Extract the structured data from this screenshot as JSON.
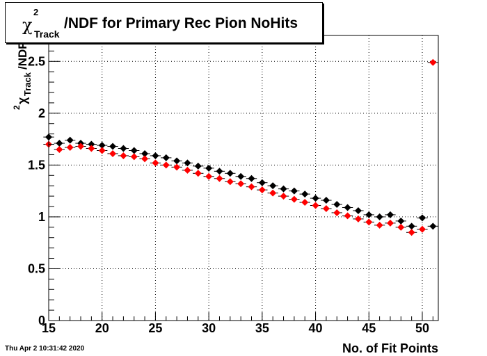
{
  "header": {
    "title_symbol": "χ",
    "title_sup": "2",
    "title_sub": "Track",
    "title_rest": "/NDF for Primary Rec Pion NoHits"
  },
  "footer": {
    "timestamp": "Thu Apr  2 10:31:42 2020"
  },
  "chart_data": {
    "type": "scatter",
    "title": "χ²Track/NDF for Primary Rec Pion NoHits",
    "xlabel": "No. of Fit Points",
    "ylabel": "χ²Track/NDF",
    "xlim": [
      15,
      51.5
    ],
    "ylim": [
      0,
      2.75
    ],
    "x_ticks": [
      15,
      20,
      25,
      30,
      35,
      40,
      45,
      50
    ],
    "y_ticks": [
      0,
      0.5,
      1,
      1.5,
      2,
      2.5
    ],
    "y_tick_labels": [
      "0",
      "0.5",
      "1",
      "1.5",
      "2",
      "2.5"
    ],
    "grid": true,
    "series": [
      {
        "color": "#000000",
        "x": [
          15,
          16,
          17,
          18,
          19,
          20,
          21,
          22,
          23,
          24,
          25,
          26,
          27,
          28,
          29,
          30,
          31,
          32,
          33,
          34,
          35,
          36,
          37,
          38,
          39,
          40,
          41,
          42,
          43,
          44,
          45,
          46,
          47,
          48,
          49,
          50,
          51
        ],
        "y": [
          1.77,
          1.71,
          1.74,
          1.71,
          1.7,
          1.69,
          1.68,
          1.66,
          1.64,
          1.61,
          1.59,
          1.57,
          1.54,
          1.52,
          1.49,
          1.47,
          1.44,
          1.42,
          1.39,
          1.37,
          1.33,
          1.3,
          1.27,
          1.25,
          1.22,
          1.18,
          1.16,
          1.12,
          1.09,
          1.06,
          1.02,
          1.0,
          1.02,
          0.96,
          0.91,
          0.99,
          0.91
        ]
      },
      {
        "color": "#ff0000",
        "x": [
          15,
          16,
          17,
          18,
          19,
          20,
          21,
          22,
          23,
          24,
          25,
          26,
          27,
          28,
          29,
          30,
          31,
          32,
          33,
          34,
          35,
          36,
          37,
          38,
          39,
          40,
          41,
          42,
          43,
          44,
          45,
          46,
          47,
          48,
          49,
          50,
          51
        ],
        "y": [
          1.7,
          1.65,
          1.67,
          1.68,
          1.66,
          1.64,
          1.61,
          1.59,
          1.58,
          1.56,
          1.52,
          1.5,
          1.48,
          1.45,
          1.42,
          1.39,
          1.37,
          1.34,
          1.32,
          1.29,
          1.26,
          1.23,
          1.2,
          1.17,
          1.14,
          1.11,
          1.08,
          1.04,
          1.01,
          0.98,
          0.95,
          0.92,
          0.94,
          0.9,
          0.85,
          0.88,
          2.49
        ]
      }
    ]
  }
}
